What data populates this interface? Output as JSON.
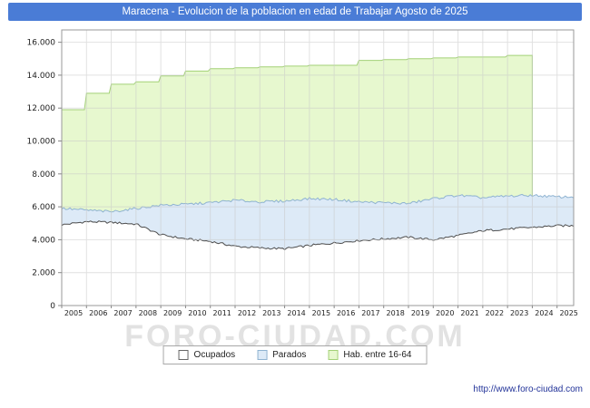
{
  "title": "Maracena - Evolucion de la poblacion en edad de Trabajar Agosto de 2025",
  "watermark": "FORO-CIUDAD.COM",
  "footer_url": "http://www.foro-ciudad.com",
  "colors": {
    "title_bg": "#4a7cd6",
    "title_text": "#ffffff",
    "grid": "#c9c9c9",
    "plot_border": "#999999",
    "axis_text": "#222222",
    "ocupados_fill": "#ffffff",
    "ocupados_line": "#4d4d4d",
    "parados_fill": "#ddeaf7",
    "parados_line": "#8fb3d1",
    "hab_fill": "#e7f8cf",
    "hab_line": "#a3d177",
    "footer_text": "#223399",
    "watermark_text": "#e2e2e2"
  },
  "legend": {
    "items": [
      {
        "label": "Ocupados",
        "fill": "#ffffff",
        "stroke": "#666666"
      },
      {
        "label": "Parados",
        "fill": "#ddeaf7",
        "stroke": "#8fb3d1"
      },
      {
        "label": "Hab. entre 16-64",
        "fill": "#e7f8cf",
        "stroke": "#a3d177"
      }
    ]
  },
  "chart_data": {
    "type": "area",
    "title": "Maracena - Evolucion de la poblacion en edad de Trabajar Agosto de 2025",
    "xlabel": "",
    "ylabel": "",
    "ylim": [
      0,
      16000
    ],
    "ytick_step": 2000,
    "grid": true,
    "legend_position": "bottom",
    "x_years": [
      2005,
      2006,
      2007,
      2008,
      2009,
      2010,
      2011,
      2012,
      2013,
      2014,
      2015,
      2016,
      2017,
      2018,
      2019,
      2020,
      2021,
      2022,
      2023,
      2024,
      2025
    ],
    "x_end": 2025.67,
    "note": "Three overlaid areas; values are the top edge of each band read from the chart (persons).",
    "series": [
      {
        "name": "Hab. entre 16-64",
        "style": "step",
        "end": 2024.0,
        "years": [
          2005,
          2006,
          2007,
          2008,
          2009,
          2010,
          2011,
          2012,
          2013,
          2014,
          2015,
          2016,
          2017,
          2018,
          2019,
          2020,
          2021,
          2022,
          2023
        ],
        "values": [
          11900,
          12900,
          13450,
          13600,
          13950,
          14250,
          14400,
          14450,
          14500,
          14550,
          14600,
          14600,
          14900,
          14950,
          15000,
          15050,
          15100,
          15100,
          15200
        ]
      },
      {
        "name": "Parados",
        "style": "line",
        "end": 2025.67,
        "years": [
          2005,
          2006,
          2007,
          2008,
          2009,
          2010,
          2011,
          2012,
          2013,
          2014,
          2015,
          2016,
          2017,
          2018,
          2019,
          2020,
          2021,
          2022,
          2023,
          2024,
          2025
        ],
        "values": [
          5900,
          5800,
          5700,
          5900,
          6100,
          6150,
          6250,
          6400,
          6300,
          6350,
          6500,
          6450,
          6300,
          6250,
          6200,
          6500,
          6700,
          6550,
          6650,
          6700,
          6600
        ]
      },
      {
        "name": "Ocupados",
        "style": "line",
        "end": 2025.67,
        "years": [
          2005,
          2006,
          2007,
          2008,
          2009,
          2010,
          2011,
          2012,
          2013,
          2014,
          2015,
          2016,
          2017,
          2018,
          2019,
          2020,
          2021,
          2022,
          2023,
          2024,
          2025
        ],
        "values": [
          4900,
          5100,
          5050,
          4950,
          4300,
          4050,
          3900,
          3600,
          3500,
          3450,
          3650,
          3800,
          3950,
          4050,
          4150,
          4000,
          4250,
          4550,
          4650,
          4750,
          4850
        ]
      }
    ]
  }
}
